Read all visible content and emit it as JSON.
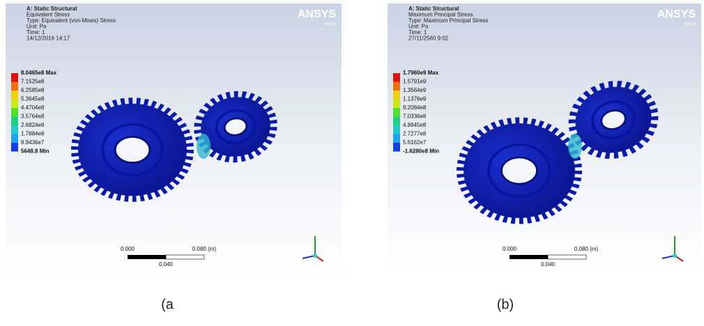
{
  "panels": [
    {
      "logo": "ANSYS",
      "logo_sub": "R16.0",
      "header": [
        "A: Static Structural",
        "Equivalent Stress",
        "Type: Equivalent (von-Mises) Stress",
        "Unit: Pa",
        "Time: 1",
        "14/12/2016 14:17"
      ],
      "legend": [
        "8.0465e8 Max",
        "7.1525e8",
        "6.2585e8",
        "5.3645e8",
        "4.4704e8",
        "3.5764e8",
        "2.6824e8",
        "1.7884e8",
        "8.9436e7",
        "5648.8 Min"
      ],
      "scale": {
        "left": "0.000",
        "right": "0.080 (m)",
        "middle": "0.040"
      },
      "caption": "(a"
    },
    {
      "logo": "ANSYS",
      "logo_sub": "R16.0",
      "header": [
        "A: Static Structural",
        "Maximum Principal Stress",
        "Type: Maximum Principal Stress",
        "Unit: Pa",
        "Time: 1",
        "27/11/2560 9:02"
      ],
      "legend": [
        "1.7960e9 Max",
        "1.5791e9",
        "1.3564e9",
        "1.1376e9",
        "9.2084e8",
        "7.0336e8",
        "4.8645e8",
        "2.7277e8",
        "5.6162e7",
        "-1.6280e8 Min"
      ],
      "scale": {
        "left": "0.000",
        "right": "0.080 (m)",
        "middle": "0.040"
      },
      "caption": "(b)"
    }
  ]
}
